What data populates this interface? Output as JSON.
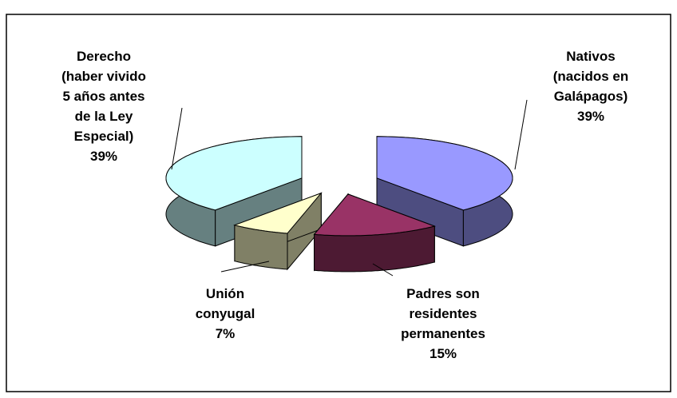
{
  "chart_data": {
    "type": "pie3d",
    "categories": [
      "Nativos\n(nacidos en\nGalápagos)",
      "Padres son\nresidentes\npermanentes",
      "Unión\nconyugal",
      "Derecho\n(haber vivido\n5 años antes\nde la Ley\nEspecial)"
    ],
    "values": [
      39,
      15,
      7,
      39
    ],
    "value_labels": [
      "39%",
      "15%",
      "7%",
      "39%"
    ],
    "colors": [
      "#9999ff",
      "#993366",
      "#ffffcc",
      "#ccffff"
    ]
  }
}
